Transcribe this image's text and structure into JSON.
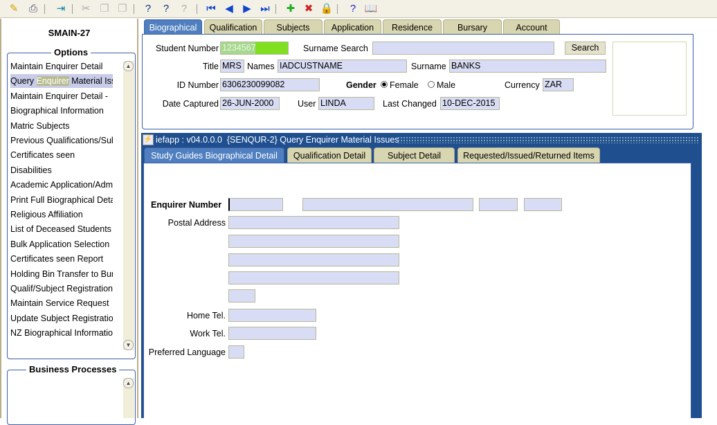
{
  "toolbar": {
    "icons": [
      "save-icon",
      "print-icon",
      "exit-icon",
      "cut-icon",
      "copy-icon",
      "paste-icon",
      "query-icon",
      "execute-query-icon",
      "cancel-query-icon",
      "first-record-icon",
      "previous-record-icon",
      "next-record-icon",
      "last-record-icon",
      "insert-record-icon",
      "delete-record-icon",
      "lock-record-icon",
      "help-icon",
      "book-icon"
    ]
  },
  "sidebar": {
    "form_code": "SMAIN-27",
    "options_title": "Options",
    "options": [
      {
        "label": "Maintain Enquirer Detail"
      },
      {
        "pre": "Query ",
        "hl": "Enquirer",
        "post": " Material Issues"
      },
      {
        "label": "Maintain Enquirer Detail - "
      },
      {
        "label": "Biographical Information"
      },
      {
        "label": "Matric Subjects"
      },
      {
        "label": "Previous Qualifications/Subjects"
      },
      {
        "label": "Certificates seen"
      },
      {
        "label": "Disabilities"
      },
      {
        "label": "Academic Application/Admission"
      },
      {
        "label": "Print Full Biographical Detail"
      },
      {
        "label": "Religious Affiliation"
      },
      {
        "label": "List of Deceased Students"
      },
      {
        "label": "Bulk Application Selection"
      },
      {
        "label": "Certificates seen Report"
      },
      {
        "label": "Holding Bin Transfer to Bursary"
      },
      {
        "label": "Qualif/Subject Registration"
      },
      {
        "label": "Maintain Service Request"
      },
      {
        "label": "Update Subject Registration"
      },
      {
        "label": "NZ Biographical Information"
      }
    ],
    "business_title": "Business Processes"
  },
  "top_tabs": [
    "Biographical",
    "Qualification",
    "Subjects",
    "Application",
    "Residence",
    "Bursary",
    "Account"
  ],
  "bio": {
    "student_number_label": "Student Number",
    "student_number": "1234567",
    "surname_search_label": "Surname Search",
    "surname_search": "",
    "search_button": "Search",
    "title_label": "Title",
    "title": "MRS",
    "names_label": "Names",
    "names": "IADCUSTNAME",
    "surname_label": "Surname",
    "surname": "BANKS",
    "id_label": "ID Number",
    "id": "6306230099082",
    "gender_label": "Gender",
    "female": "Female",
    "male": "Male",
    "gender_selected": "Female",
    "currency_label": "Currency",
    "currency": "ZAR",
    "date_captured_label": "Date Captured",
    "date_captured": "26-JUN-2000",
    "user_label": "User",
    "user": "LINDA",
    "last_changed_label": "Last Changed",
    "last_changed": "10-DEC-2015"
  },
  "window": {
    "title": "iefapp : v04.0.0.0  {SENQUR-2} Query Enquirer Material Issues"
  },
  "inner_tabs": [
    "Study Guides Biographical Detail",
    "Qualification Detail",
    "Subject Detail",
    "Requested/Issued/Returned Items"
  ],
  "detail": {
    "enquirer_number_label": "Enquirer Number",
    "postal_address_label": "Postal Address",
    "home_tel_label": "Home Tel.",
    "work_tel_label": "Work Tel.",
    "preferred_language_label": "Preferred Language"
  },
  "colors": {
    "accent": "#4f7fbf",
    "title_bar": "#1f4f8f",
    "field_bg": "#d8dcf4",
    "student_number_highlight": "#80e020"
  }
}
